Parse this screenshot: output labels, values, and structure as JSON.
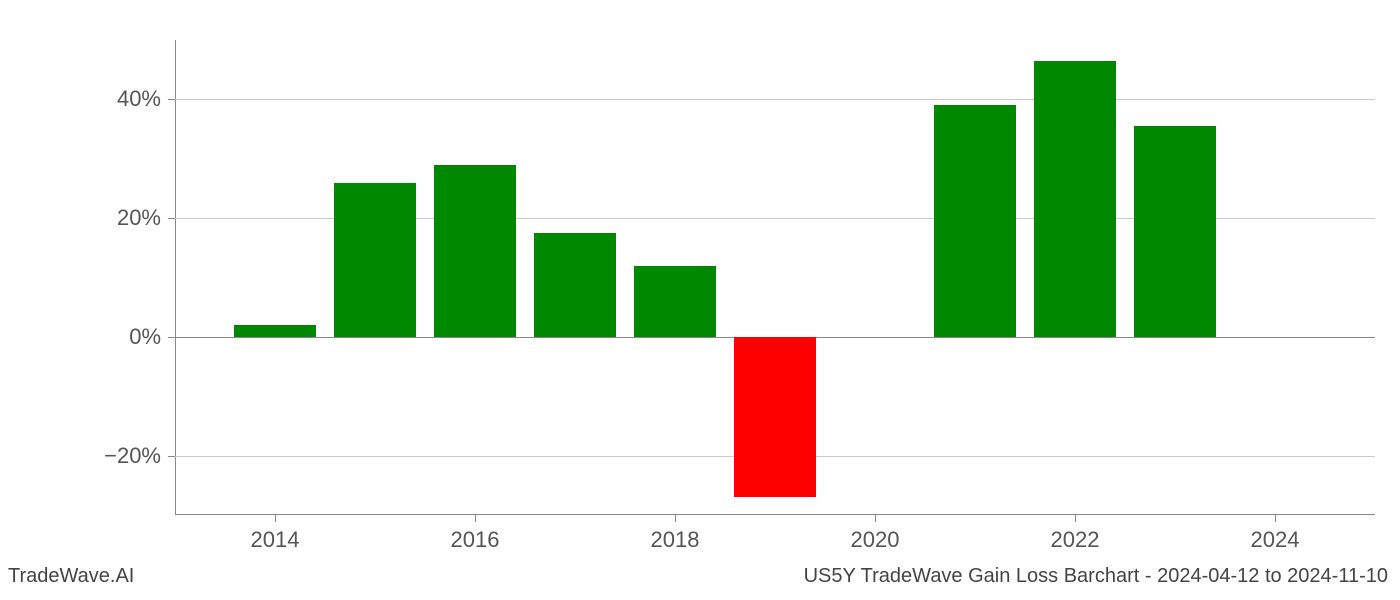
{
  "chart": {
    "type": "bar",
    "background_color": "#ffffff",
    "grid_color": "#cccccc",
    "axis_color": "#888888",
    "tick_label_color": "#555555",
    "tick_label_fontsize": 22,
    "footer_fontsize": 20,
    "footer_color": "#444444",
    "positive_color": "#008800",
    "negative_color": "#ff0000",
    "x_domain_min": 2013,
    "x_domain_max": 2025,
    "y_domain_min": -30,
    "y_domain_max": 50,
    "y_ticks": [
      -20,
      0,
      20,
      40
    ],
    "y_tick_labels": [
      "−20%",
      "0%",
      "20%",
      "40%"
    ],
    "x_ticks": [
      2014,
      2016,
      2018,
      2020,
      2022,
      2024
    ],
    "x_tick_labels": [
      "2014",
      "2016",
      "2018",
      "2020",
      "2022",
      "2024"
    ],
    "bar_width_years": 0.82,
    "bars": [
      {
        "x": 2014,
        "value": 2
      },
      {
        "x": 2015,
        "value": 26
      },
      {
        "x": 2016,
        "value": 29
      },
      {
        "x": 2017,
        "value": 17.5
      },
      {
        "x": 2018,
        "value": 12
      },
      {
        "x": 2019,
        "value": -27
      },
      {
        "x": 2021,
        "value": 39
      },
      {
        "x": 2022,
        "value": 46.5
      },
      {
        "x": 2023,
        "value": 35.5
      }
    ]
  },
  "footer": {
    "left": "TradeWave.AI",
    "right": "US5Y TradeWave Gain Loss Barchart - 2024-04-12 to 2024-11-10"
  }
}
